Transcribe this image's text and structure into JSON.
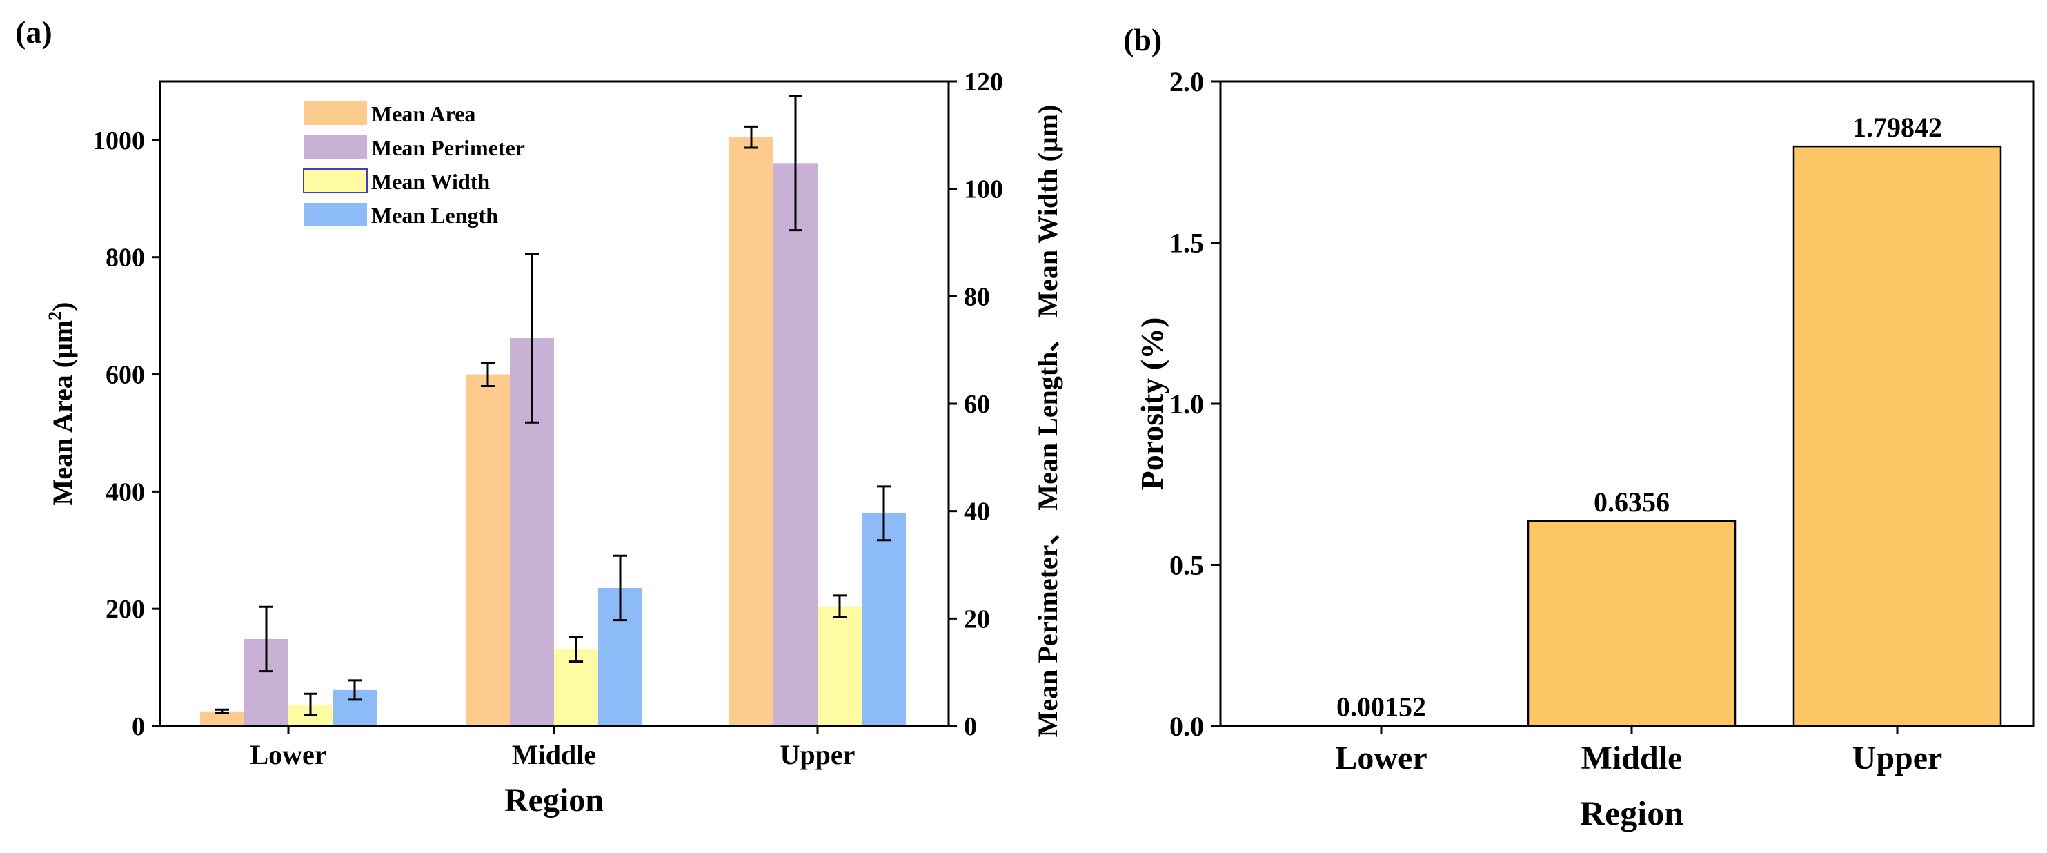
{
  "chart_data": [
    {
      "panel_label": "(a)",
      "type": "bar",
      "xlabel": "Region",
      "categories": [
        "Lower",
        "Middle",
        "Upper"
      ],
      "y_left": {
        "label_main": "Mean Area (μm",
        "label_sup": "2",
        "label_end": ")",
        "ylim": [
          0,
          1100
        ],
        "ticks": [
          "0",
          "200",
          "400",
          "600",
          "800",
          "1000"
        ]
      },
      "y_right": {
        "label": "Mean Perimeter、 Mean Length、 Mean Width (μm)",
        "ylim": [
          0,
          120
        ],
        "ticks": [
          "0",
          "20",
          "40",
          "60",
          "80",
          "100",
          "120"
        ]
      },
      "series": [
        {
          "name": "Mean Area",
          "axis": "left",
          "color": "#FDCB8E",
          "values": [
            25,
            600,
            1005
          ],
          "errors": [
            3,
            20,
            18
          ]
        },
        {
          "name": "Mean Perimeter",
          "axis": "right",
          "color": "#C9B1D6",
          "values": [
            16.2,
            72.2,
            104.8
          ],
          "errors": [
            6.0,
            15.7,
            12.5
          ]
        },
        {
          "name": "Mean Width",
          "axis": "right",
          "color": "#FFFBA4",
          "values": [
            4.0,
            14.3,
            22.3
          ],
          "errors": [
            2.0,
            2.3,
            2.0
          ]
        },
        {
          "name": "Mean Length",
          "axis": "right",
          "color": "#8DBBF7",
          "values": [
            6.7,
            25.7,
            39.6
          ],
          "errors": [
            1.8,
            6.0,
            5.0
          ]
        }
      ]
    },
    {
      "panel_label": "(b)",
      "type": "bar",
      "xlabel": "Region",
      "ylabel": "Porosity (%)",
      "categories": [
        "Lower",
        "Middle",
        "Upper"
      ],
      "values": [
        0.00152,
        0.6356,
        1.79842
      ],
      "data_labels": [
        "0.00152",
        "0.6356",
        "1.79842"
      ],
      "color": "#FCC566",
      "ylim": [
        0,
        2.0
      ],
      "ticks": [
        "0.0",
        "0.5",
        "1.0",
        "1.5",
        "2.0"
      ]
    }
  ]
}
